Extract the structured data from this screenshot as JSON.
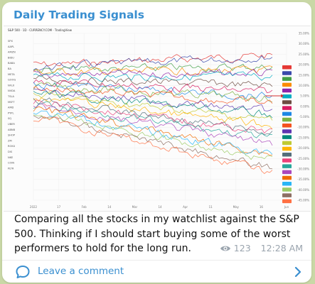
{
  "post": {
    "channel_name": "Daily Trading Signals",
    "message": "Comparing all the stocks in my watchlist against the S&P 500. Thinking if I should start buying some of the worst performers to hold for the long run.",
    "views": "123",
    "time": "12:28 AM",
    "comment_label": "Leave a comment"
  },
  "chart_embed": {
    "title": "S&P 500 · 1D · CURRENCY.COM · TradingView",
    "x_ticks": [
      "2022",
      "17",
      "Feb",
      "14",
      "Mar",
      "14",
      "Apr",
      "11",
      "May",
      "16",
      "Jun"
    ],
    "y_ticks": [
      "35.00%",
      "30.00%",
      "25.00%",
      "20.00%",
      "15.00%",
      "10.00%",
      "5.00%",
      "0.00%",
      "-5.00%",
      "-10.00%",
      "-15.00%",
      "-20.00%",
      "-25.00%",
      "-30.00%",
      "-35.00%",
      "-40.00%",
      "-45.00%"
    ],
    "legend_symbols": [
      "SPX",
      "AAPL",
      "AMZN",
      "BIDU",
      "BABA",
      "BA",
      "META",
      "GOOG",
      "NFLX",
      "NVDA",
      "TSLA",
      "MSFT",
      "AMD",
      "PYPL",
      "SQ",
      "UBER",
      "ABNB",
      "SHOP",
      "ZM",
      "ROKU",
      "DIS",
      "NKE",
      "COIN",
      "PLTR"
    ],
    "series_colors": [
      "#e53935",
      "#3949ab",
      "#43a047",
      "#fb8c00",
      "#8e24aa",
      "#00acc1",
      "#6d4c41",
      "#d81b60",
      "#1e88e5",
      "#7cb342",
      "#f4511e",
      "#5e35b1",
      "#00897b",
      "#c0ca33",
      "#ffb300",
      "#546e7a",
      "#ec407a",
      "#26a69a",
      "#ab47bc",
      "#ef6c00",
      "#29b6f6",
      "#9ccc65",
      "#8d6e63",
      "#ff7043"
    ]
  },
  "icons": {
    "views": "eye-icon",
    "comment": "chat-bubble-icon",
    "open": "chevron-right-icon"
  }
}
